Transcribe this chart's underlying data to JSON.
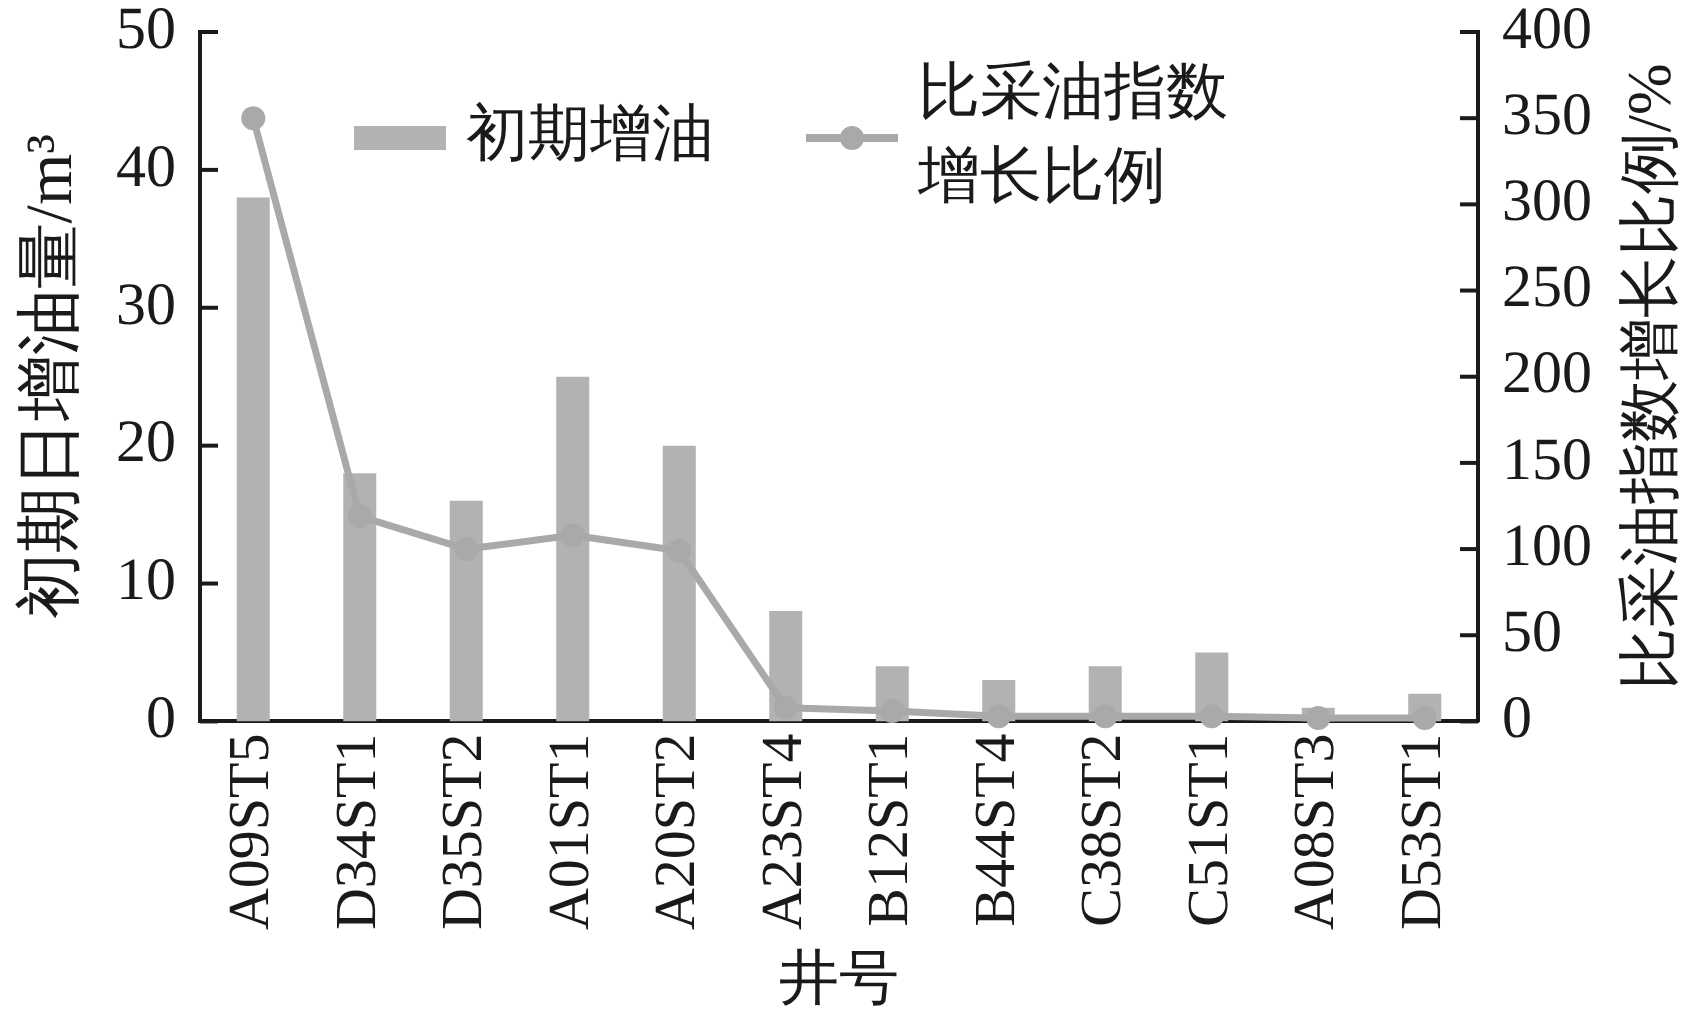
{
  "chart_data": {
    "type": "bar",
    "categories": [
      "A09ST5",
      "D34ST1",
      "D35ST2",
      "A01ST1",
      "A20ST2",
      "A23ST4",
      "B12ST1",
      "B44ST4",
      "C38ST2",
      "C51ST1",
      "A08ST3",
      "D53ST1"
    ],
    "series": [
      {
        "name": "初期增油",
        "color": "#b2b2b2",
        "values": [
          38,
          18,
          16,
          25,
          20,
          8,
          4,
          3,
          4,
          5,
          1,
          2
        ]
      },
      {
        "name": "比采油指数增长比例",
        "type": "line",
        "axis": "y2",
        "color": "#a9a9a9",
        "values": [
          350,
          119,
          100,
          108,
          99,
          8,
          6,
          3,
          3,
          3,
          2,
          2
        ]
      }
    ],
    "xlabel": "井号",
    "ylabel": "初期日增油量/m³",
    "y2label": "比采油指数增长比例/%",
    "ylim": [
      0,
      50
    ],
    "yticks": [
      0,
      10,
      20,
      30,
      40,
      50
    ],
    "y2lim": [
      0,
      400
    ],
    "y2ticks": [
      0,
      50,
      100,
      150,
      200,
      250,
      300,
      350,
      400
    ],
    "grid": false,
    "legend": "top",
    "marker": "circle"
  }
}
